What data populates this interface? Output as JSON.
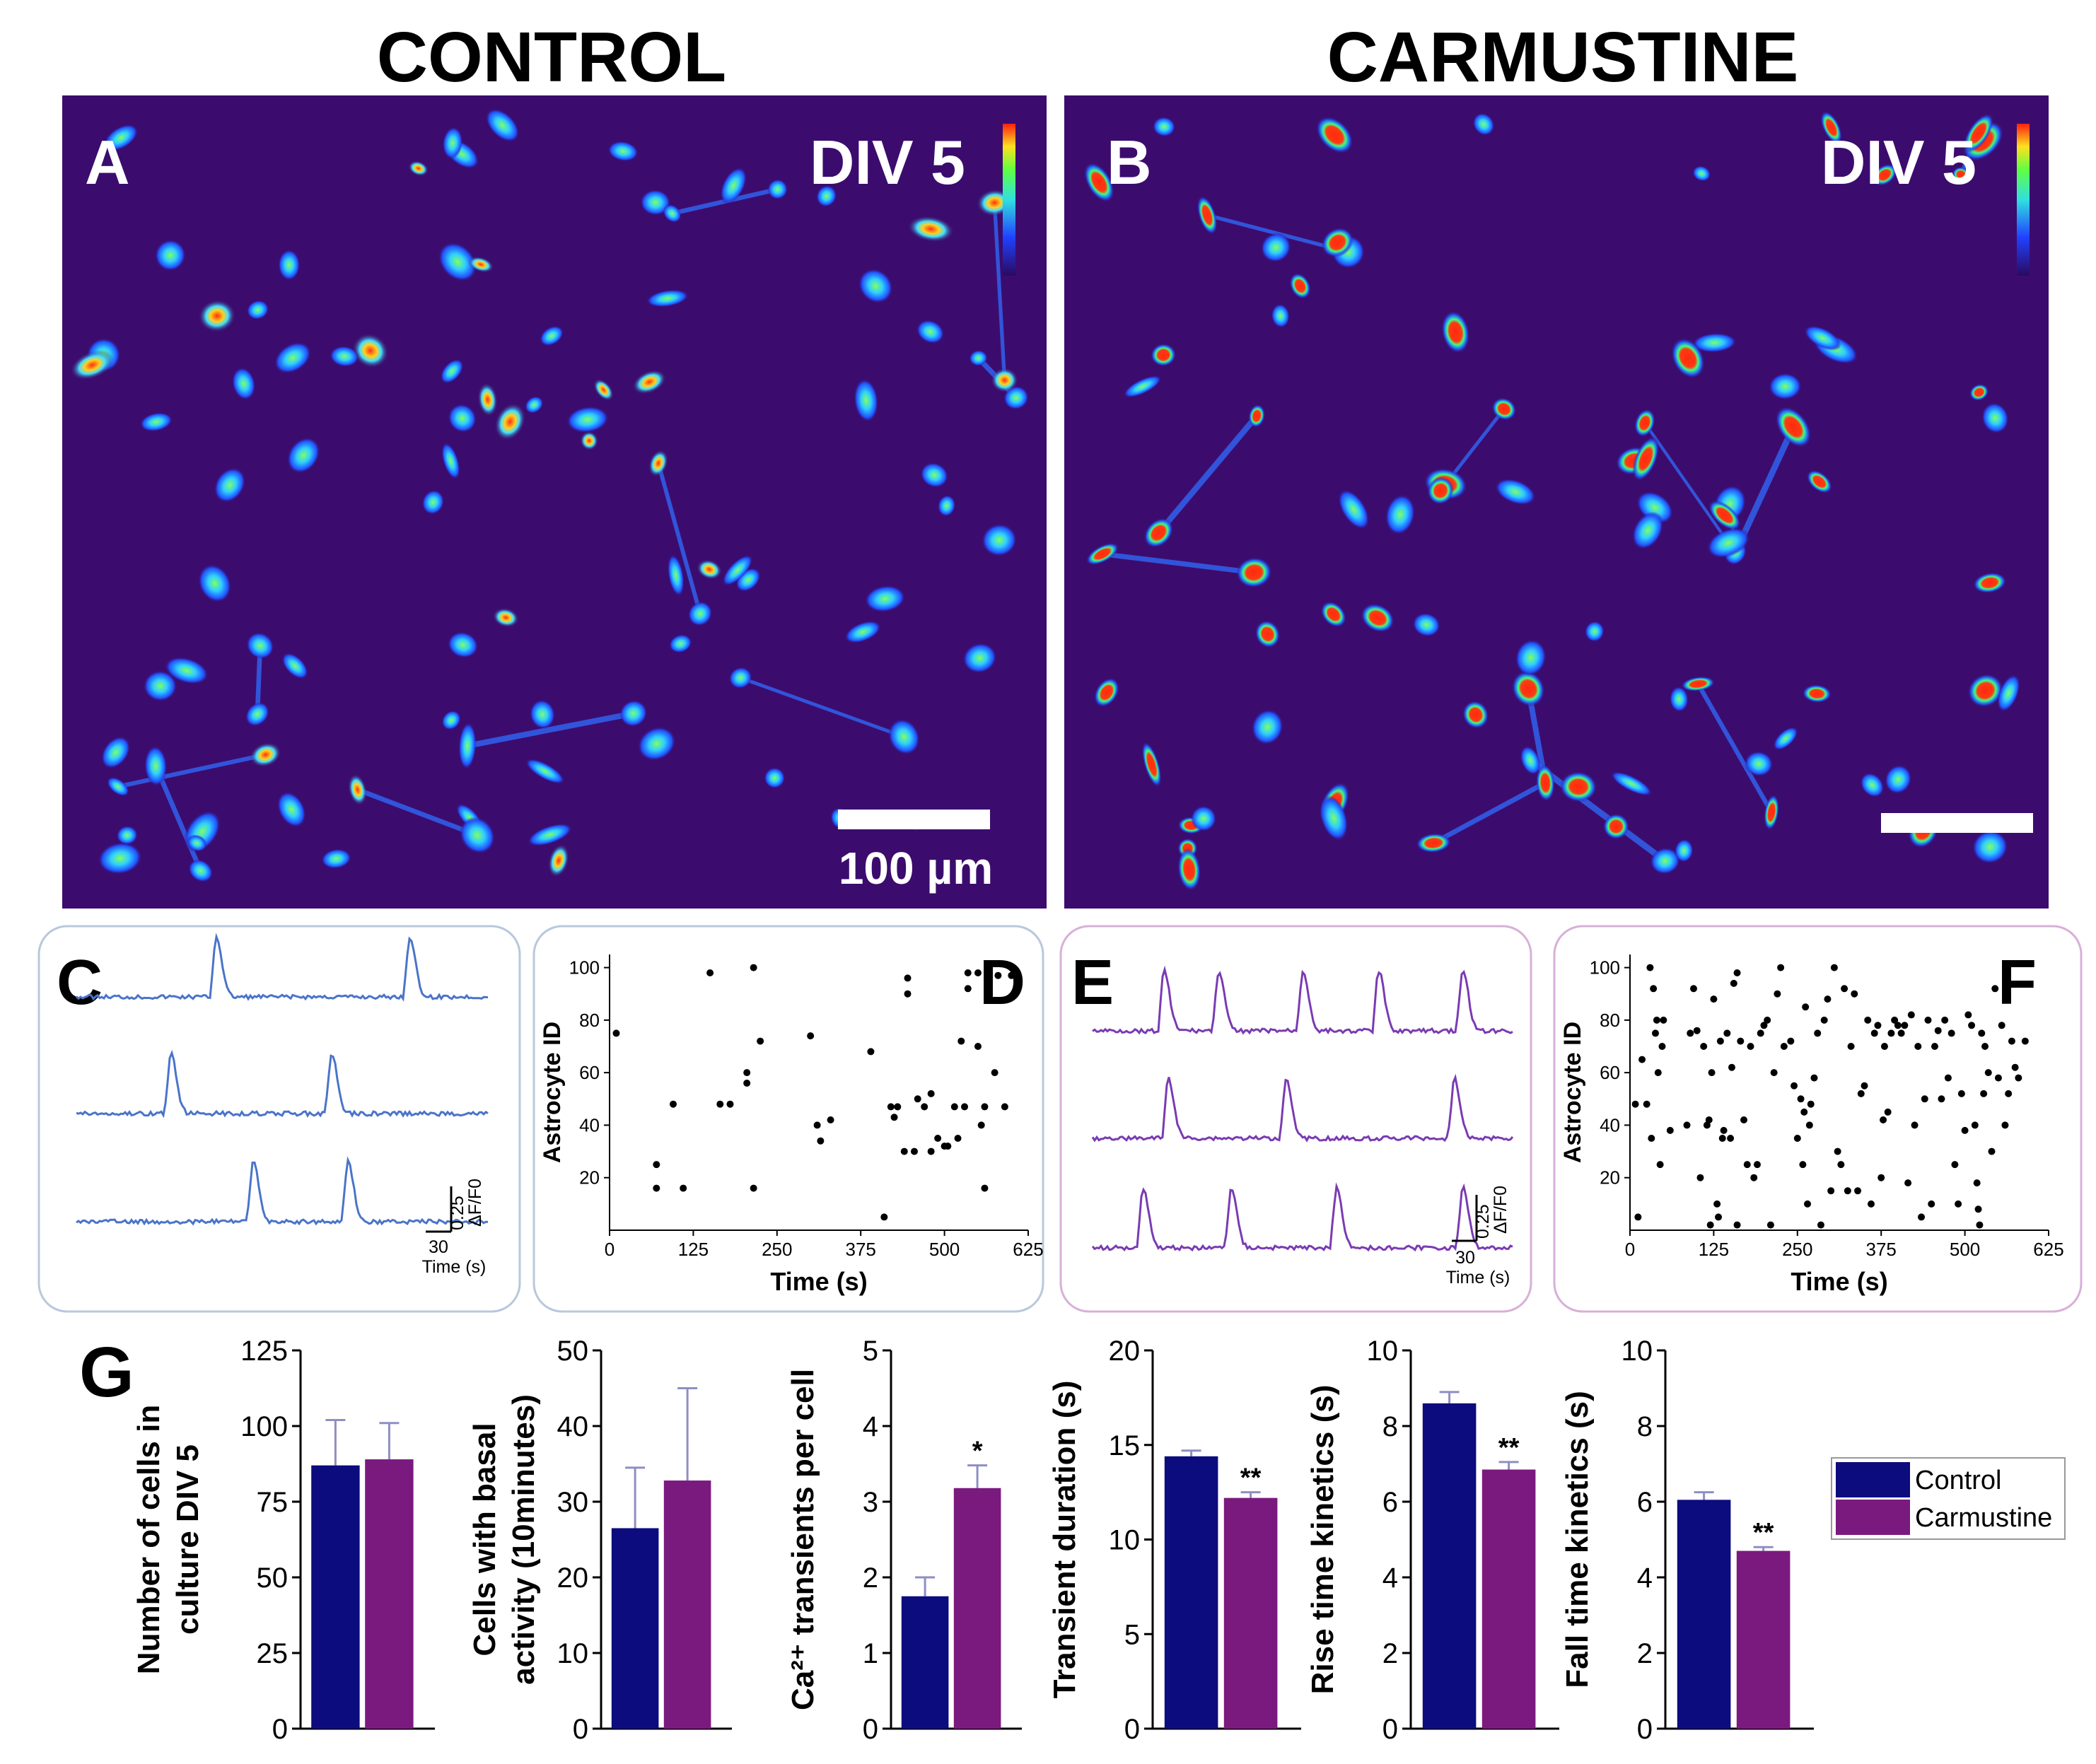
{
  "headings": {
    "control": "CONTROL",
    "carmustine": "CARMUSTINE"
  },
  "micrograph_A": {
    "letter": "A",
    "label": "DIV 5",
    "scalebar_text": "100 µm"
  },
  "micrograph_B": {
    "letter": "B",
    "label": "DIV 5"
  },
  "colors": {
    "control": "#0c0c7e",
    "carmustine": "#7b1a7e",
    "bg_image": "#3b0c6e",
    "trace_control": "#4a74c9",
    "trace_carmustine": "#7a3bb2",
    "box_C": "#b8c8dc",
    "box_E": "#d8b0d8"
  },
  "traces_C": {
    "letter": "C",
    "scale_label": "ΔF/F0",
    "scale_value": "0.25",
    "time_value": "30",
    "time_label": "Time (s)",
    "peaks": [
      [
        0.34,
        0.81
      ],
      [
        0.23,
        0.62
      ],
      [
        0.43,
        0.66
      ]
    ]
  },
  "traces_E": {
    "letter": "E",
    "scale_label": "ΔF/F0",
    "scale_value": "0.25",
    "time_value": "30",
    "time_label": "Time (s)",
    "peaks": [
      [
        0.17,
        0.3,
        0.5,
        0.68,
        0.88
      ],
      [
        0.18,
        0.46,
        0.86
      ],
      [
        0.12,
        0.33,
        0.58,
        0.88
      ]
    ]
  },
  "panel_letters": {
    "D": "D",
    "F": "F",
    "G": "G"
  },
  "chart_data": [
    {
      "panel": "D",
      "type": "scatter",
      "xlabel": "Time (s)",
      "ylabel": "Astrocyte ID",
      "xlim": [
        0,
        625
      ],
      "ylim": [
        0,
        105
      ],
      "xticks": [
        0,
        125,
        250,
        375,
        500,
        625
      ],
      "yticks": [
        20,
        40,
        60,
        80,
        100
      ],
      "points": [
        [
          10,
          75
        ],
        [
          70,
          25
        ],
        [
          70,
          16
        ],
        [
          95,
          48
        ],
        [
          110,
          16
        ],
        [
          150,
          98
        ],
        [
          165,
          48
        ],
        [
          180,
          48
        ],
        [
          205,
          60
        ],
        [
          205,
          56
        ],
        [
          215,
          100
        ],
        [
          215,
          16
        ],
        [
          225,
          72
        ],
        [
          300,
          74
        ],
        [
          310,
          40
        ],
        [
          315,
          34
        ],
        [
          330,
          42
        ],
        [
          390,
          68
        ],
        [
          410,
          5
        ],
        [
          420,
          47
        ],
        [
          425,
          43
        ],
        [
          430,
          47
        ],
        [
          440,
          30
        ],
        [
          445,
          96
        ],
        [
          445,
          90
        ],
        [
          455,
          30
        ],
        [
          460,
          50
        ],
        [
          470,
          47
        ],
        [
          480,
          52
        ],
        [
          480,
          30
        ],
        [
          490,
          35
        ],
        [
          500,
          32
        ],
        [
          505,
          32
        ],
        [
          515,
          47
        ],
        [
          520,
          35
        ],
        [
          525,
          72
        ],
        [
          530,
          47
        ],
        [
          535,
          98
        ],
        [
          535,
          92
        ],
        [
          550,
          98
        ],
        [
          550,
          70
        ],
        [
          555,
          40
        ],
        [
          560,
          16
        ],
        [
          560,
          47
        ],
        [
          565,
          95
        ],
        [
          575,
          60
        ],
        [
          580,
          97
        ],
        [
          590,
          47
        ],
        [
          600,
          97
        ]
      ]
    },
    {
      "panel": "F",
      "type": "scatter",
      "xlabel": "Time (s)",
      "ylabel": "Astrocyte ID",
      "xlim": [
        0,
        625
      ],
      "ylim": [
        0,
        105
      ],
      "xticks": [
        0,
        125,
        250,
        375,
        500,
        625
      ],
      "yticks": [
        20,
        40,
        60,
        80,
        100
      ],
      "points": [
        [
          8,
          48
        ],
        [
          12,
          5
        ],
        [
          18,
          65
        ],
        [
          25,
          48
        ],
        [
          30,
          100
        ],
        [
          32,
          35
        ],
        [
          35,
          92
        ],
        [
          38,
          75
        ],
        [
          40,
          80
        ],
        [
          42,
          60
        ],
        [
          45,
          25
        ],
        [
          48,
          70
        ],
        [
          50,
          80
        ],
        [
          60,
          38
        ],
        [
          85,
          40
        ],
        [
          90,
          75
        ],
        [
          95,
          92
        ],
        [
          100,
          76
        ],
        [
          105,
          20
        ],
        [
          110,
          70
        ],
        [
          115,
          40
        ],
        [
          118,
          42
        ],
        [
          120,
          2
        ],
        [
          122,
          60
        ],
        [
          125,
          88
        ],
        [
          130,
          10
        ],
        [
          132,
          5
        ],
        [
          135,
          72
        ],
        [
          138,
          35
        ],
        [
          140,
          38
        ],
        [
          145,
          75
        ],
        [
          150,
          35
        ],
        [
          152,
          62
        ],
        [
          155,
          94
        ],
        [
          160,
          98
        ],
        [
          160,
          2
        ],
        [
          165,
          72
        ],
        [
          170,
          42
        ],
        [
          175,
          25
        ],
        [
          180,
          70
        ],
        [
          185,
          20
        ],
        [
          190,
          25
        ],
        [
          195,
          75
        ],
        [
          200,
          78
        ],
        [
          205,
          80
        ],
        [
          210,
          2
        ],
        [
          215,
          60
        ],
        [
          220,
          90
        ],
        [
          225,
          100
        ],
        [
          230,
          70
        ],
        [
          240,
          72
        ],
        [
          245,
          55
        ],
        [
          250,
          35
        ],
        [
          255,
          50
        ],
        [
          258,
          25
        ],
        [
          260,
          45
        ],
        [
          262,
          85
        ],
        [
          265,
          10
        ],
        [
          268,
          40
        ],
        [
          270,
          48
        ],
        [
          275,
          58
        ],
        [
          280,
          75
        ],
        [
          285,
          2
        ],
        [
          290,
          80
        ],
        [
          295,
          88
        ],
        [
          300,
          15
        ],
        [
          305,
          100
        ],
        [
          310,
          30
        ],
        [
          315,
          25
        ],
        [
          320,
          92
        ],
        [
          325,
          15
        ],
        [
          330,
          70
        ],
        [
          335,
          90
        ],
        [
          340,
          15
        ],
        [
          345,
          52
        ],
        [
          350,
          55
        ],
        [
          355,
          80
        ],
        [
          360,
          10
        ],
        [
          365,
          75
        ],
        [
          370,
          78
        ],
        [
          375,
          20
        ],
        [
          378,
          42
        ],
        [
          380,
          70
        ],
        [
          385,
          45
        ],
        [
          390,
          75
        ],
        [
          395,
          80
        ],
        [
          400,
          78
        ],
        [
          405,
          75
        ],
        [
          410,
          78
        ],
        [
          415,
          18
        ],
        [
          420,
          82
        ],
        [
          425,
          40
        ],
        [
          430,
          70
        ],
        [
          435,
          5
        ],
        [
          440,
          50
        ],
        [
          445,
          80
        ],
        [
          450,
          10
        ],
        [
          455,
          70
        ],
        [
          460,
          76
        ],
        [
          465,
          50
        ],
        [
          470,
          80
        ],
        [
          475,
          58
        ],
        [
          480,
          75
        ],
        [
          485,
          25
        ],
        [
          490,
          10
        ],
        [
          495,
          52
        ],
        [
          500,
          38
        ],
        [
          505,
          82
        ],
        [
          510,
          78
        ],
        [
          515,
          40
        ],
        [
          518,
          18
        ],
        [
          520,
          8
        ],
        [
          522,
          2
        ],
        [
          525,
          75
        ],
        [
          528,
          52
        ],
        [
          530,
          70
        ],
        [
          535,
          60
        ],
        [
          540,
          30
        ],
        [
          545,
          92
        ],
        [
          550,
          58
        ],
        [
          555,
          78
        ],
        [
          560,
          40
        ],
        [
          565,
          52
        ],
        [
          570,
          72
        ],
        [
          575,
          62
        ],
        [
          580,
          58
        ],
        [
          590,
          72
        ]
      ]
    },
    {
      "panel": "G1",
      "type": "bar",
      "ylabel_lines": [
        "Number of cells in",
        "culture DIV 5"
      ],
      "ylim": [
        0,
        125
      ],
      "yticks": [
        0,
        25,
        50,
        75,
        100,
        125
      ],
      "yticklabels": [
        "0",
        "25",
        "50",
        "75",
        "100",
        "125"
      ],
      "series": [
        {
          "name": "Control",
          "value": 87,
          "error": 15
        },
        {
          "name": "Carmustine",
          "value": 89,
          "error": 12
        }
      ],
      "annotation": ""
    },
    {
      "panel": "G2",
      "type": "bar",
      "ylabel_lines": [
        "Cells with basal",
        "activity (10minutes)"
      ],
      "ylim": [
        0,
        50
      ],
      "yticks": [
        0,
        10,
        20,
        30,
        40,
        50
      ],
      "yticklabels": [
        "0",
        "10",
        "20",
        "30",
        "40",
        "50"
      ],
      "series": [
        {
          "name": "Control",
          "value": 26.5,
          "error": 8
        },
        {
          "name": "Carmustine",
          "value": 32.8,
          "error": 12.2
        }
      ],
      "annotation": ""
    },
    {
      "panel": "G3",
      "type": "bar",
      "ylabel_lines": [
        "Ca²⁺ transients per cell"
      ],
      "ylim": [
        0,
        5
      ],
      "yticks": [
        0,
        1,
        2,
        3,
        4,
        5
      ],
      "yticklabels": [
        "0",
        "1",
        "2",
        "3",
        "4",
        "5"
      ],
      "series": [
        {
          "name": "Control",
          "value": 1.75,
          "error": 0.25
        },
        {
          "name": "Carmustine",
          "value": 3.18,
          "error": 0.3
        }
      ],
      "annotation": "*"
    },
    {
      "panel": "G4",
      "type": "bar",
      "ylabel_lines": [
        "Transient duration (s)"
      ],
      "ylim": [
        0,
        20
      ],
      "yticks": [
        0,
        5,
        10,
        15,
        20
      ],
      "yticklabels": [
        "0",
        "5",
        "10",
        "15",
        "20"
      ],
      "series": [
        {
          "name": "Control",
          "value": 14.4,
          "error": 0.3
        },
        {
          "name": "Carmustine",
          "value": 12.2,
          "error": 0.3
        }
      ],
      "annotation": "**"
    },
    {
      "panel": "G5",
      "type": "bar",
      "ylabel_lines": [
        "Rise time kinetics (s)"
      ],
      "ylim": [
        0,
        10
      ],
      "yticks": [
        0,
        2,
        4,
        6,
        8,
        10
      ],
      "yticklabels": [
        "0",
        "2",
        "4",
        "6",
        "8",
        "10"
      ],
      "series": [
        {
          "name": "Control",
          "value": 8.6,
          "error": 0.3
        },
        {
          "name": "Carmustine",
          "value": 6.85,
          "error": 0.2
        }
      ],
      "annotation": "**"
    },
    {
      "panel": "G6",
      "type": "bar",
      "ylabel_lines": [
        "Fall time kinetics (s)"
      ],
      "ylim": [
        0,
        10
      ],
      "yticks": [
        0,
        2,
        4,
        6,
        8,
        10
      ],
      "yticklabels": [
        "0",
        "2",
        "4",
        "6",
        "8",
        "10"
      ],
      "series": [
        {
          "name": "Control",
          "value": 6.05,
          "error": 0.2
        },
        {
          "name": "Carmustine",
          "value": 4.7,
          "error": 0.1
        }
      ],
      "annotation": "**"
    }
  ],
  "legend": {
    "items": [
      "Control",
      "Carmustine"
    ]
  }
}
